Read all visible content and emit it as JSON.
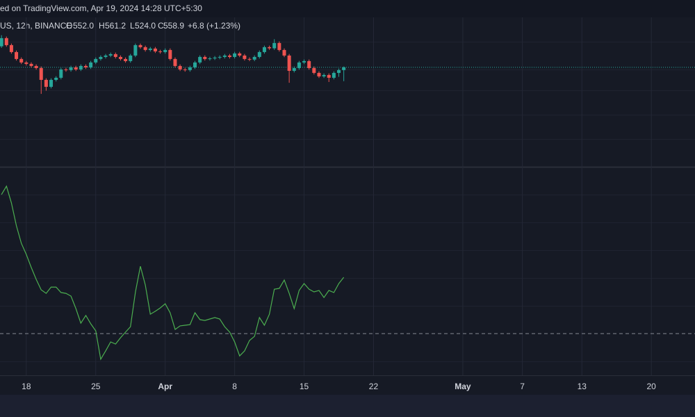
{
  "chart_data": [
    {
      "type": "candlestick",
      "header": "ed on TradingView.com, Apr 19, 2024 14:28 UTC+5:30",
      "symbol": "US, 12h, BINANCE",
      "ohlc_letters": [
        "O",
        "H",
        "L",
        "C"
      ],
      "change_label": "+6.8 (+1.23%)",
      "up_color": "#26a69a",
      "down_color": "#ef5350",
      "last_price_color": "#26a69a",
      "open": [
        612.0,
        632.6,
        615.0,
        597.5,
        580.0,
        571.2,
        567.7,
        562.4,
        557.1,
        527.3,
        509.8,
        527.3,
        532.6,
        553.6,
        552.0,
        558.9,
        553.6,
        562.4,
        558.9,
        571.2,
        580.0,
        585.2,
        588.7,
        592.2,
        585.2,
        580.0,
        574.7,
        588.7,
        615.0,
        609.8,
        602.7,
        606.3,
        599.2,
        597.5,
        602.7,
        580.0,
        562.4,
        553.6,
        552.0,
        558.9,
        571.2,
        585.2,
        580.0,
        581.5,
        583.5,
        585.2,
        588.7,
        585.2,
        594.0,
        588.7,
        580.0,
        578.5,
        585.2,
        597.5,
        609.8,
        607.0,
        620.3,
        602.7,
        588.7,
        550.1,
        557.1,
        571.2,
        574.7,
        557.1,
        544.9,
        536.1,
        539.6,
        532.6,
        544.9,
        552.0
      ],
      "high": [
        640.0,
        636.6,
        619.0,
        601.5,
        584.0,
        575.2,
        571.7,
        566.4,
        561.1,
        531.3,
        531.3,
        536.6,
        557.6,
        557.6,
        562.9,
        562.9,
        566.4,
        566.4,
        575.2,
        584.0,
        589.2,
        592.7,
        596.2,
        596.2,
        589.2,
        584.0,
        592.7,
        619.0,
        619.0,
        613.8,
        610.3,
        610.3,
        603.2,
        606.7,
        606.7,
        584.0,
        566.4,
        557.6,
        562.9,
        575.2,
        589.2,
        589.2,
        585.5,
        587.5,
        589.2,
        592.7,
        592.7,
        598.0,
        598.0,
        592.7,
        584.0,
        589.2,
        601.5,
        613.8,
        613.8,
        630.0,
        624.3,
        606.7,
        592.7,
        561.1,
        575.2,
        578.7,
        578.7,
        561.1,
        548.9,
        543.6,
        543.6,
        548.9,
        556.0,
        561.2
      ],
      "low": [
        608.0,
        611.0,
        593.5,
        576.0,
        567.2,
        563.7,
        558.4,
        553.1,
        492.0,
        500.0,
        505.8,
        523.3,
        528.6,
        548.0,
        548.0,
        549.6,
        549.6,
        554.9,
        554.9,
        567.2,
        576.0,
        581.2,
        584.7,
        581.2,
        576.0,
        570.7,
        570.7,
        584.7,
        605.8,
        598.7,
        598.7,
        595.2,
        593.5,
        593.5,
        576.0,
        558.4,
        549.6,
        548.0,
        548.0,
        554.9,
        567.2,
        576.0,
        576.0,
        577.5,
        579.5,
        581.2,
        581.2,
        581.2,
        584.7,
        576.0,
        574.5,
        574.5,
        581.2,
        593.5,
        603.0,
        603.0,
        598.7,
        584.7,
        520.0,
        546.1,
        553.1,
        567.2,
        553.1,
        540.9,
        532.1,
        532.1,
        522.0,
        528.6,
        535.0,
        524.0
      ],
      "close": [
        632.6,
        615.0,
        597.5,
        580.0,
        571.2,
        567.7,
        562.4,
        557.1,
        527.3,
        509.8,
        527.3,
        532.6,
        553.6,
        552.0,
        558.9,
        553.6,
        562.4,
        558.9,
        571.2,
        580.0,
        585.2,
        588.7,
        592.2,
        585.2,
        580.0,
        574.7,
        588.7,
        615.0,
        609.8,
        602.7,
        606.3,
        599.2,
        597.5,
        602.7,
        580.0,
        562.4,
        553.6,
        552.0,
        558.9,
        571.2,
        585.2,
        580.0,
        581.5,
        583.5,
        585.2,
        588.7,
        585.2,
        594.0,
        588.7,
        580.0,
        578.5,
        585.2,
        597.5,
        609.8,
        607.0,
        620.3,
        602.7,
        588.7,
        550.1,
        557.1,
        571.2,
        574.7,
        557.1,
        544.9,
        536.1,
        539.6,
        532.6,
        544.9,
        552.0,
        558.9
      ],
      "xlim": [
        -0.3,
        139.8
      ],
      "xticks": [
        {
          "value": 5,
          "label": "18"
        },
        {
          "value": 19,
          "label": "25"
        },
        {
          "value": 33,
          "label": "Apr"
        },
        {
          "value": 47,
          "label": "8"
        },
        {
          "value": 61,
          "label": "15"
        },
        {
          "value": 75,
          "label": "22"
        },
        {
          "value": 93,
          "label": "May"
        },
        {
          "value": 105,
          "label": "7"
        },
        {
          "value": 117,
          "label": "13"
        },
        {
          "value": 131,
          "label": "20"
        }
      ],
      "ylim": [
        308,
        685
      ]
    },
    {
      "type": "line",
      "color": "#4caf50",
      "values": [
        86.7,
        90.7,
        82.7,
        71.7,
        63.3,
        58,
        51.7,
        46,
        41,
        39.3,
        42.3,
        42.3,
        39.7,
        39.3,
        38,
        32,
        25,
        28.7,
        24.7,
        21.3,
        7.7,
        11.7,
        16,
        15,
        18,
        20.7,
        23.3,
        40,
        52.3,
        43.3,
        29.3,
        30.7,
        32.3,
        34.3,
        30,
        22,
        23.7,
        24,
        24.3,
        30,
        26.7,
        26.3,
        27,
        27.7,
        27,
        23.3,
        20.7,
        16,
        9.3,
        11.7,
        16.7,
        18.7,
        27.7,
        24,
        29.3,
        41.3,
        41.7,
        45.7,
        39.3,
        32,
        40.7,
        44,
        41.3,
        40,
        40.7,
        37.3,
        40.7,
        39.7,
        44,
        47
      ],
      "level": 20,
      "xlim": [
        -0.3,
        139.8
      ],
      "ylim": [
        0,
        100
      ]
    }
  ]
}
